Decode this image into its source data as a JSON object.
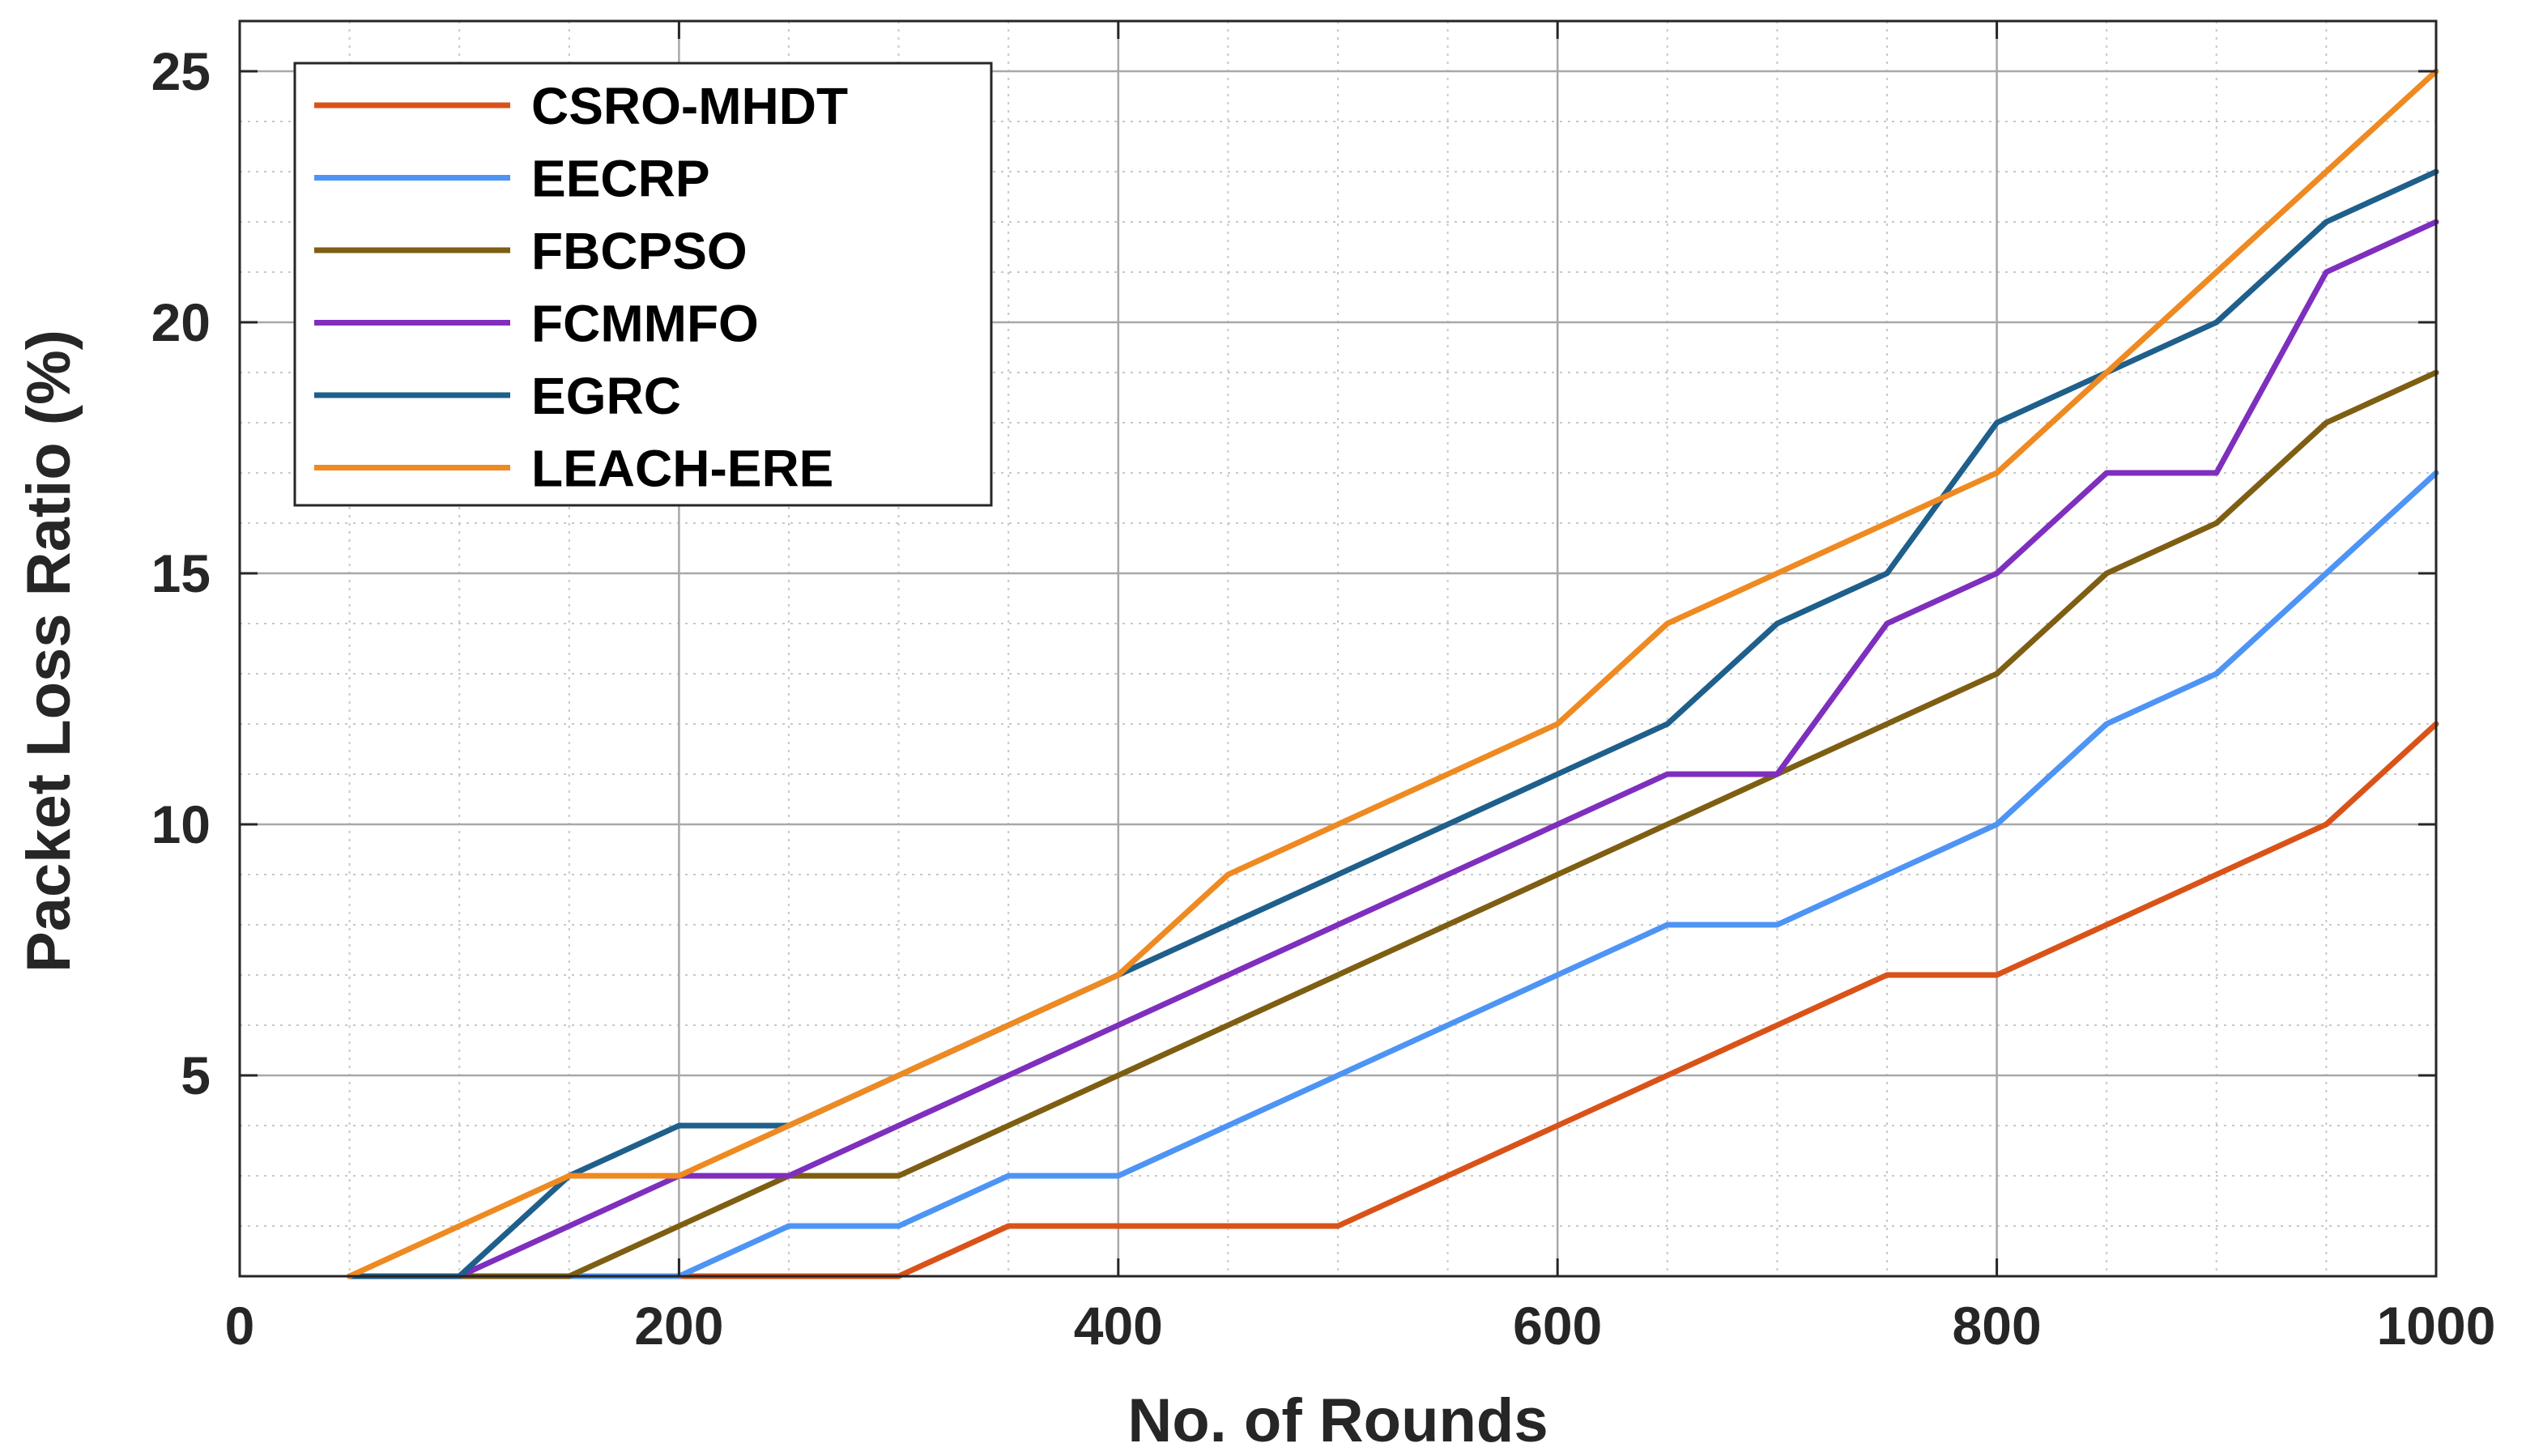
{
  "chart_data": {
    "type": "line",
    "xlabel": "No. of Rounds",
    "ylabel": "Packet Loss Ratio (%)",
    "xlim": [
      0,
      1000
    ],
    "ylim": [
      1,
      26
    ],
    "xticks": [
      0,
      200,
      400,
      600,
      800,
      1000
    ],
    "yticks": [
      5,
      10,
      15,
      20,
      25
    ],
    "grid": true,
    "minor_grid": true,
    "legend_position": "top-left",
    "x": [
      50,
      100,
      150,
      200,
      250,
      300,
      350,
      400,
      450,
      500,
      550,
      600,
      650,
      700,
      750,
      800,
      850,
      900,
      950,
      1000
    ],
    "series": [
      {
        "name": "CSRO-MHDT",
        "color": "#d95319",
        "values": [
          1,
          1,
          1,
          1,
          1,
          1,
          2,
          2,
          2,
          2,
          3,
          4,
          5,
          6,
          7,
          7,
          8,
          9,
          10,
          12
        ]
      },
      {
        "name": "EECRP",
        "color": "#4d94f5",
        "values": [
          1,
          1,
          1,
          1,
          2,
          2,
          3,
          3,
          4,
          5,
          6,
          7,
          8,
          8,
          9,
          10,
          12,
          13,
          15,
          17
        ]
      },
      {
        "name": "FBCPSO",
        "color": "#7e5e12",
        "values": [
          1,
          1,
          1,
          2,
          3,
          3,
          4,
          5,
          6,
          7,
          8,
          9,
          10,
          11,
          12,
          13,
          15,
          16,
          18,
          19
        ]
      },
      {
        "name": "FCMMFO",
        "color": "#7e2fbe",
        "values": [
          1,
          1,
          2,
          3,
          3,
          4,
          5,
          6,
          7,
          8,
          9,
          10,
          11,
          11,
          14,
          15,
          17,
          17,
          21,
          22
        ]
      },
      {
        "name": "EGRC",
        "color": "#1f5f8b",
        "values": [
          1,
          1,
          3,
          4,
          4,
          5,
          6,
          7,
          8,
          9,
          10,
          11,
          12,
          14,
          15,
          18,
          19,
          20,
          22,
          23
        ]
      },
      {
        "name": "LEACH-ERE",
        "color": "#ee8a21",
        "values": [
          1,
          2,
          3,
          3,
          4,
          5,
          6,
          7,
          9,
          10,
          11,
          12,
          14,
          15,
          16,
          17,
          19,
          21,
          23,
          25
        ]
      }
    ]
  }
}
